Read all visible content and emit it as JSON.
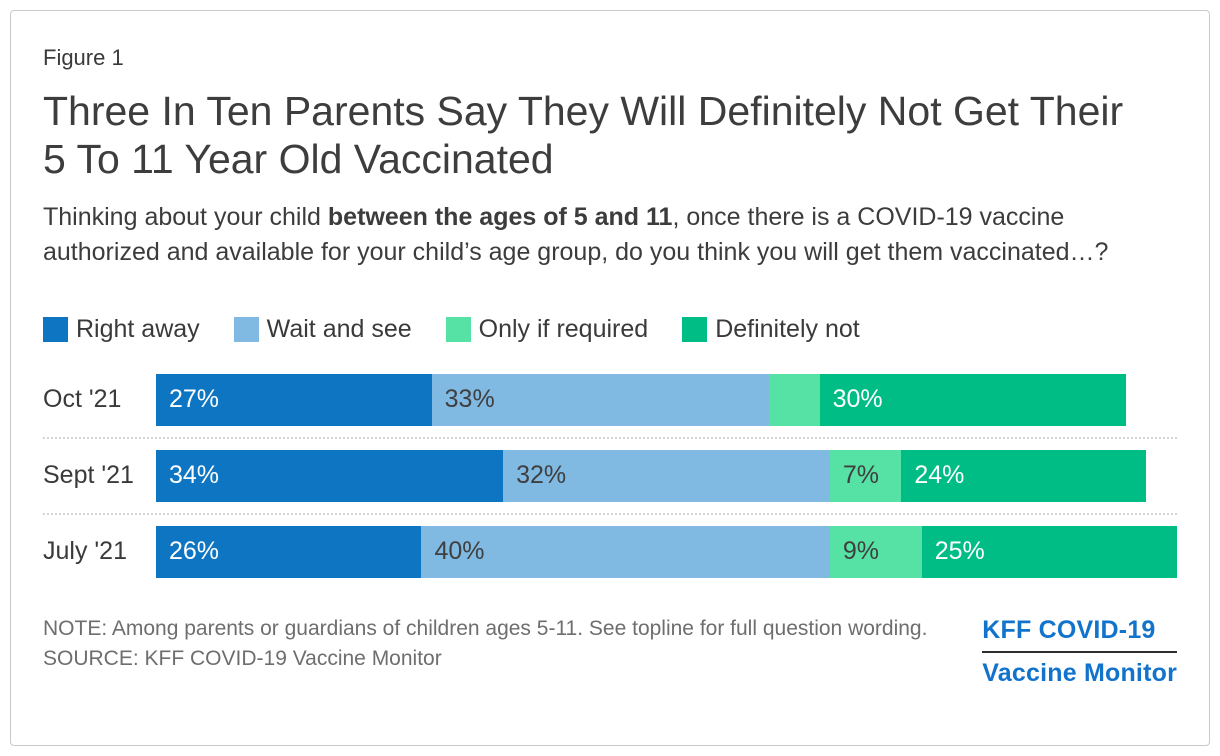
{
  "figure_label": "Figure 1",
  "title": "Three In Ten Parents Say They Will Definitely Not Get Their 5 To 11 Year Old Vaccinated",
  "subtitle": {
    "pre": "Thinking about your child ",
    "bold": "between the ages of 5 and 11",
    "post": ", once there is a COVID-19 vaccine authorized and available for your child’s age group, do you think you will get them vaccinated…?"
  },
  "chart_data": {
    "type": "bar",
    "variant": "horizontal-stacked",
    "xlim": [
      0,
      100
    ],
    "unit": "percent",
    "legend_position": "top",
    "grid": "off",
    "categories": [
      "Oct '21",
      "Sept '21",
      "July '21"
    ],
    "series": [
      {
        "name": "Right away",
        "color": "#0d75c2",
        "text_color": "#ffffff",
        "values": [
          27,
          34,
          26
        ],
        "labels": [
          "27%",
          "34%",
          "26%"
        ]
      },
      {
        "name": "Wait and see",
        "color": "#80b9e2",
        "text_color": "#3f3f3f",
        "values": [
          33,
          32,
          40
        ],
        "labels": [
          "33%",
          "32%",
          "40%"
        ]
      },
      {
        "name": "Only if required",
        "color": "#55e2a4",
        "text_color": "#3f3f3f",
        "values": [
          5,
          7,
          9
        ],
        "labels": [
          "",
          "7%",
          "9%"
        ]
      },
      {
        "name": "Definitely not",
        "color": "#00bd86",
        "text_color": "#ffffff",
        "values": [
          30,
          24,
          25
        ],
        "labels": [
          "30%",
          "24%",
          "25%"
        ]
      }
    ]
  },
  "footer": {
    "note": "NOTE: Among parents or guardians of children ages 5-11. See topline for full question wording.",
    "source": "SOURCE: KFF COVID-19 Vaccine Monitor",
    "logo_line1": "KFF COVID-19",
    "logo_line2": "Vaccine Monitor",
    "logo_color": "#1273cd"
  }
}
